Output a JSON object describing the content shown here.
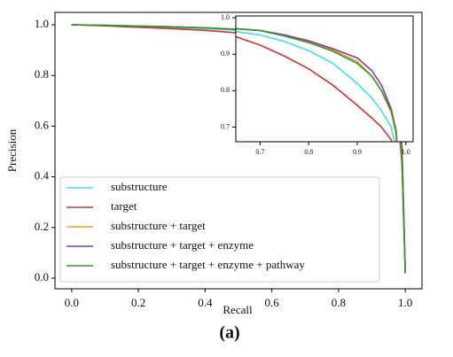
{
  "chart_data": {
    "type": "line",
    "x_label": "Recall",
    "y_label": "Precision",
    "caption": "(a)",
    "x": [
      0,
      0.1,
      0.2,
      0.3,
      0.4,
      0.5,
      0.6,
      0.65,
      0.7,
      0.75,
      0.8,
      0.85,
      0.9,
      0.93,
      0.95,
      0.97,
      0.98,
      0.99,
      1.0
    ],
    "series": [
      {
        "name": "substructure",
        "color": "#3fe0ea",
        "values": [
          1.0,
          0.997,
          0.994,
          0.99,
          0.985,
          0.978,
          0.97,
          0.962,
          0.953,
          0.935,
          0.91,
          0.875,
          0.82,
          0.78,
          0.745,
          0.7,
          0.64,
          0.45,
          0.02
        ]
      },
      {
        "name": "target",
        "color": "#d43030",
        "values": [
          1.0,
          0.996,
          0.99,
          0.985,
          0.978,
          0.968,
          0.955,
          0.948,
          0.925,
          0.895,
          0.86,
          0.815,
          0.76,
          0.725,
          0.7,
          0.665,
          0.62,
          0.45,
          0.02
        ]
      },
      {
        "name": "substructure + target",
        "color": "#f0a020",
        "values": [
          1.0,
          0.998,
          0.995,
          0.992,
          0.988,
          0.982,
          0.975,
          0.97,
          0.965,
          0.952,
          0.935,
          0.912,
          0.88,
          0.84,
          0.8,
          0.74,
          0.68,
          0.5,
          0.02
        ]
      },
      {
        "name": "substructure + target + enzyme",
        "color": "#8a35a8",
        "values": [
          1.0,
          0.998,
          0.995,
          0.992,
          0.988,
          0.982,
          0.975,
          0.97,
          0.965,
          0.953,
          0.937,
          0.915,
          0.89,
          0.855,
          0.815,
          0.75,
          0.69,
          0.52,
          0.02
        ]
      },
      {
        "name": "substructure + target + enzyme + pathway",
        "color": "#2e9a2e",
        "values": [
          1.0,
          0.998,
          0.995,
          0.992,
          0.988,
          0.982,
          0.975,
          0.97,
          0.965,
          0.95,
          0.932,
          0.908,
          0.875,
          0.84,
          0.8,
          0.745,
          0.69,
          0.52,
          0.02
        ]
      }
    ],
    "xlim": [
      -0.05,
      1.05
    ],
    "ylim": [
      -0.042,
      1.049
    ],
    "xticks": [
      {
        "value": 0,
        "label": "0.0"
      },
      0.2,
      0.4,
      0.6,
      0.8,
      {
        "value": 1,
        "label": "1.0"
      }
    ],
    "yticks": [
      {
        "value": 0,
        "label": "0.0"
      },
      0.2,
      0.4,
      0.6,
      0.8,
      {
        "value": 1,
        "label": "1.0"
      }
    ],
    "legend": "lower left",
    "inset": {
      "xlim": [
        0.65,
        1.015
      ],
      "ylim": [
        0.66,
        1.005
      ],
      "xticks": [
        0.7,
        0.8,
        0.9,
        {
          "value": 1,
          "label": "1.0"
        }
      ],
      "yticks": [
        0.7,
        0.8,
        0.9,
        {
          "value": 1,
          "label": "1.0"
        }
      ]
    }
  }
}
